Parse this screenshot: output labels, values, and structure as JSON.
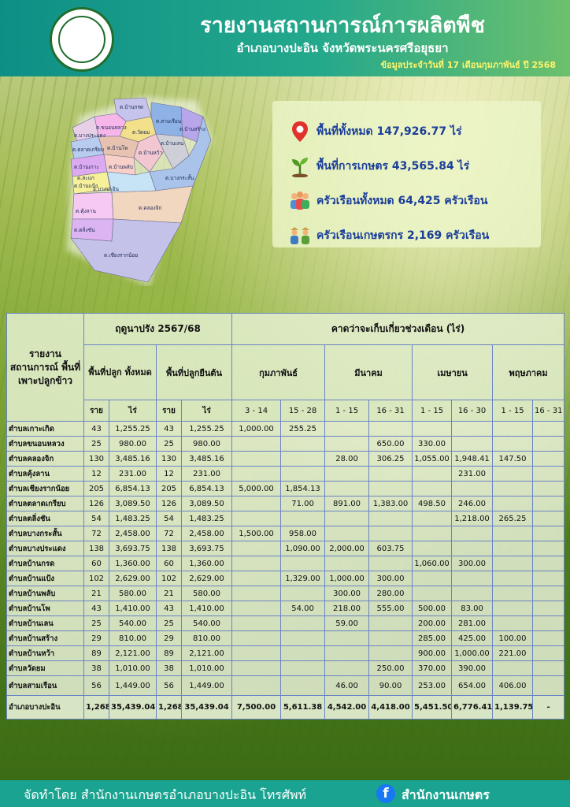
{
  "header": {
    "title": "รายงานสถานการณ์การผลิตพืช",
    "subtitle": "อำเภอบางปะอิน จังหวัดพระนครศรีอยุธยา",
    "date": "ข้อมูลประจำวันที่  17  เดือนกุมภาพันธ์ ปี 2568"
  },
  "map": {
    "labels": [
      "ต.บ้านกรด",
      "ต.บางประแดง",
      "ต.ตลาดเกรียบ",
      "ต.ขนอนหลวง",
      "ต.สามเรือน",
      "ต.บ้านสร้าง",
      "ต.บ้านโพ",
      "ต.วัดยม",
      "ต.บ้านแป้ง",
      "ต.บ้านหว้า",
      "ต.บ้านพลับ",
      "อ.บางปะอิน",
      "ต.บ้านเลน",
      "ต.บางกระสั้น",
      "ต.คลองจิก",
      "ต.บ้านเกาะ",
      "ต.เชียงรากน้อย",
      "ต.คุ้งลาน",
      "ต.สะแก",
      "ต.ตลิ่งชัน"
    ]
  },
  "summary": [
    {
      "icon": "location-pin-icon",
      "text": "พื้นที่ทั้งหมด 147,926.77 ไร่"
    },
    {
      "icon": "plant-sprout-icon",
      "text": "พื้นที่การเกษตร 43,565.84 ไร่"
    },
    {
      "icon": "households-icon",
      "text": "ครัวเรือนทั้งหมด 64,425 ครัวเรือน"
    },
    {
      "icon": "farmers-icon",
      "text": "ครัวเรือนเกษตรกร 2,169 ครัวเรือน"
    }
  ],
  "table": {
    "h_report": "รายงาน สถานการณ์ พื้นที่ เพาะปลูกข้าว",
    "h_season": "ฤดูนาปรัง 2567/68",
    "h_forecast": "คาดว่าจะเก็บเกี่ยวช่วงเดือน (ไร่)",
    "h_planted": "พื้นที่ปลูก ทั้งหมด",
    "h_standing": "พื้นที่ปลูกยืนต้น",
    "months": [
      "กุมภาพันธ์",
      "มีนาคม",
      "เมษายน",
      "พฤษภาคม"
    ],
    "h_households": "ราย",
    "h_rai": "ไร่",
    "periods": [
      "3 - 14",
      "15 - 28",
      "1 - 15",
      "16 - 31",
      "1 - 15",
      "16 - 30",
      "1 - 15",
      "16 - 31"
    ],
    "rows": [
      [
        "ตำบลเกาะเกิด",
        "43",
        "1,255.25",
        "43",
        "1,255.25",
        "1,000.00",
        "255.25",
        "",
        "",
        "",
        "",
        "",
        ""
      ],
      [
        "ตำบลขนอนหลวง",
        "25",
        "980.00",
        "25",
        "980.00",
        "",
        "",
        "",
        "650.00",
        "330.00",
        "",
        "",
        ""
      ],
      [
        "ตำบลคลองจิก",
        "130",
        "3,485.16",
        "130",
        "3,485.16",
        "",
        "",
        "28.00",
        "306.25",
        "1,055.00",
        "1,948.41",
        "147.50",
        ""
      ],
      [
        "ตำบลคุ้งลาน",
        "12",
        "231.00",
        "12",
        "231.00",
        "",
        "",
        "",
        "",
        "",
        "231.00",
        "",
        ""
      ],
      [
        "ตำบลเชียงรากน้อย",
        "205",
        "6,854.13",
        "205",
        "6,854.13",
        "5,000.00",
        "1,854.13",
        "",
        "",
        "",
        "",
        "",
        ""
      ],
      [
        "ตำบลตลาดเกรียบ",
        "126",
        "3,089.50",
        "126",
        "3,089.50",
        "",
        "71.00",
        "891.00",
        "1,383.00",
        "498.50",
        "246.00",
        "",
        ""
      ],
      [
        "ตำบลตลิ่งชัน",
        "54",
        "1,483.25",
        "54",
        "1,483.25",
        "",
        "",
        "",
        "",
        "",
        "1,218.00",
        "265.25",
        ""
      ],
      [
        "ตำบลบางกระสั้น",
        "72",
        "2,458.00",
        "72",
        "2,458.00",
        "1,500.00",
        "958.00",
        "",
        "",
        "",
        "",
        "",
        ""
      ],
      [
        "ตำบลบางประแดง",
        "138",
        "3,693.75",
        "138",
        "3,693.75",
        "",
        "1,090.00",
        "2,000.00",
        "603.75",
        "",
        "",
        "",
        ""
      ],
      [
        "ตำบลบ้านกรด",
        "60",
        "1,360.00",
        "60",
        "1,360.00",
        "",
        "",
        "",
        "",
        "1,060.00",
        "300.00",
        "",
        ""
      ],
      [
        "ตำบลบ้านแป้ง",
        "102",
        "2,629.00",
        "102",
        "2,629.00",
        "",
        "1,329.00",
        "1,000.00",
        "300.00",
        "",
        "",
        "",
        ""
      ],
      [
        "ตำบลบ้านพลับ",
        "21",
        "580.00",
        "21",
        "580.00",
        "",
        "",
        "300.00",
        "280.00",
        "",
        "",
        "",
        ""
      ],
      [
        "ตำบลบ้านโพ",
        "43",
        "1,410.00",
        "43",
        "1,410.00",
        "",
        "54.00",
        "218.00",
        "555.00",
        "500.00",
        "83.00",
        "",
        ""
      ],
      [
        "ตำบลบ้านเลน",
        "25",
        "540.00",
        "25",
        "540.00",
        "",
        "",
        "59.00",
        "",
        "200.00",
        "281.00",
        "",
        ""
      ],
      [
        "ตำบลบ้านสร้าง",
        "29",
        "810.00",
        "29",
        "810.00",
        "",
        "",
        "",
        "",
        "285.00",
        "425.00",
        "100.00",
        ""
      ],
      [
        "ตำบลบ้านหว้า",
        "89",
        "2,121.00",
        "89",
        "2,121.00",
        "",
        "",
        "",
        "",
        "900.00",
        "1,000.00",
        "221.00",
        ""
      ],
      [
        "ตำบลวัดยม",
        "38",
        "1,010.00",
        "38",
        "1,010.00",
        "",
        "",
        "",
        "250.00",
        "370.00",
        "390.00",
        "",
        ""
      ],
      [
        "ตำบลสามเรือน",
        "56",
        "1,449.00",
        "56",
        "1,449.00",
        "",
        "",
        "46.00",
        "90.00",
        "253.00",
        "654.00",
        "406.00",
        ""
      ]
    ],
    "total": [
      "อำเภอบางปะอิน",
      "1,268",
      "35,439.04",
      "1,268",
      "35,439.04",
      "7,500.00",
      "5,611.38",
      "4,542.00",
      "4,418.00",
      "5,451.50",
      "6,776.41",
      "1,139.75",
      "-"
    ]
  },
  "footer": {
    "text": "จัดทำโดย  สำนักงานเกษตรอำเภอบางปะอิน  โทรศัพท์",
    "page": "สำนักงานเกษตร"
  },
  "colors": {
    "header_start": "#0e8f86",
    "header_end": "#6cc06c",
    "footer": "#1aa390",
    "stat_text": "#1a3d9a",
    "date_text": "#fff36a",
    "table_border": "#6a83c4"
  }
}
